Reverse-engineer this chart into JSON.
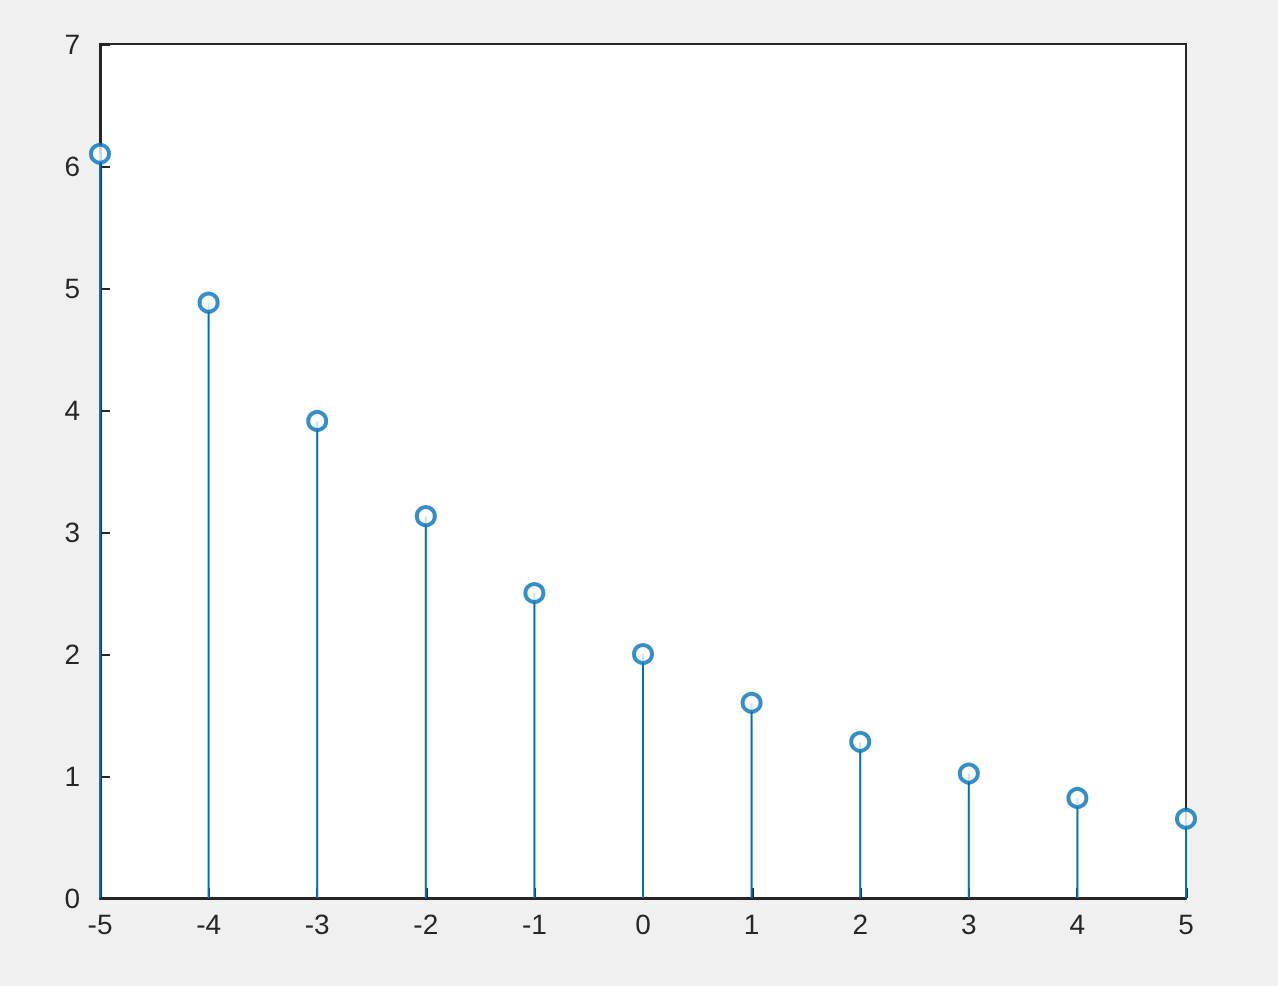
{
  "chart_data": {
    "type": "lollipop",
    "x": [
      -5,
      -4,
      -3,
      -2,
      -1,
      0,
      1,
      2,
      3,
      4,
      5
    ],
    "values": [
      6.1,
      4.88,
      3.91,
      3.13,
      2.5,
      2,
      1.6,
      1.28,
      1.02,
      0.82,
      0.65
    ],
    "color": "#0072bd",
    "marker": "circle",
    "xlim": [
      -5,
      5
    ],
    "xticks": [
      -5,
      -4,
      -3,
      -2,
      -1,
      0,
      1,
      2,
      3,
      4,
      5
    ],
    "ylim": [
      0,
      7
    ],
    "yticks": [
      0,
      1,
      2,
      3,
      4,
      5,
      6,
      7
    ]
  }
}
